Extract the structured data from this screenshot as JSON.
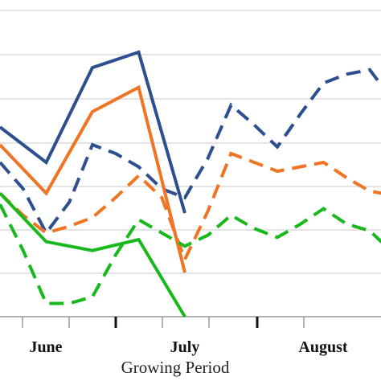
{
  "chart_data": {
    "type": "line",
    "xlabel": "Growing Period",
    "ylabel": "",
    "month_labels": [
      "June",
      "July",
      "August"
    ],
    "grid": true,
    "legend": "none",
    "ylim": [
      0,
      7
    ],
    "xlim": [
      0,
      17
    ],
    "series": [
      {
        "color": "#2e4f8f",
        "style": "solid",
        "x": [
          0,
          2,
          4,
          6,
          8
        ],
        "y": [
          4.3,
          3.5,
          5.65,
          6.0,
          2.35
        ]
      },
      {
        "color": "#2e4f8f",
        "style": "dashed",
        "x": [
          0,
          1,
          2,
          3,
          4,
          5,
          6,
          7,
          8,
          9,
          10,
          11,
          12,
          13,
          14,
          15,
          16,
          17
        ],
        "y": [
          3.5,
          2.9,
          1.9,
          2.6,
          3.9,
          3.7,
          3.4,
          2.9,
          2.7,
          3.6,
          4.8,
          4.35,
          3.85,
          4.6,
          5.3,
          5.5,
          5.6,
          4.9
        ]
      },
      {
        "color": "#ef7423",
        "style": "solid",
        "x": [
          0,
          2,
          4,
          6,
          8
        ],
        "y": [
          3.9,
          2.8,
          4.65,
          5.2,
          1.0
        ]
      },
      {
        "color": "#ef7423",
        "style": "dashed",
        "x": [
          0,
          1,
          2,
          3,
          4,
          5,
          6,
          7,
          8,
          9,
          10,
          11,
          12,
          13,
          14,
          15,
          16,
          17
        ],
        "y": [
          2.8,
          2.3,
          1.9,
          2.05,
          2.25,
          2.7,
          3.2,
          2.7,
          1.3,
          2.4,
          3.7,
          3.5,
          3.3,
          3.4,
          3.5,
          3.15,
          2.85,
          2.75
        ]
      },
      {
        "color": "#19b81c",
        "style": "solid",
        "x": [
          0,
          2,
          4,
          6,
          8
        ],
        "y": [
          2.8,
          1.7,
          1.5,
          1.75,
          0.0
        ]
      },
      {
        "color": "#19b81c",
        "style": "dashed",
        "x": [
          0,
          1,
          2,
          3,
          4,
          5,
          6,
          7,
          8,
          9,
          10,
          11,
          12,
          13,
          14,
          15,
          16,
          17
        ],
        "y": [
          2.55,
          1.5,
          0.3,
          0.3,
          0.45,
          1.4,
          2.2,
          1.9,
          1.6,
          1.85,
          2.3,
          2.0,
          1.8,
          2.1,
          2.45,
          2.1,
          1.95,
          1.45
        ]
      }
    ]
  }
}
